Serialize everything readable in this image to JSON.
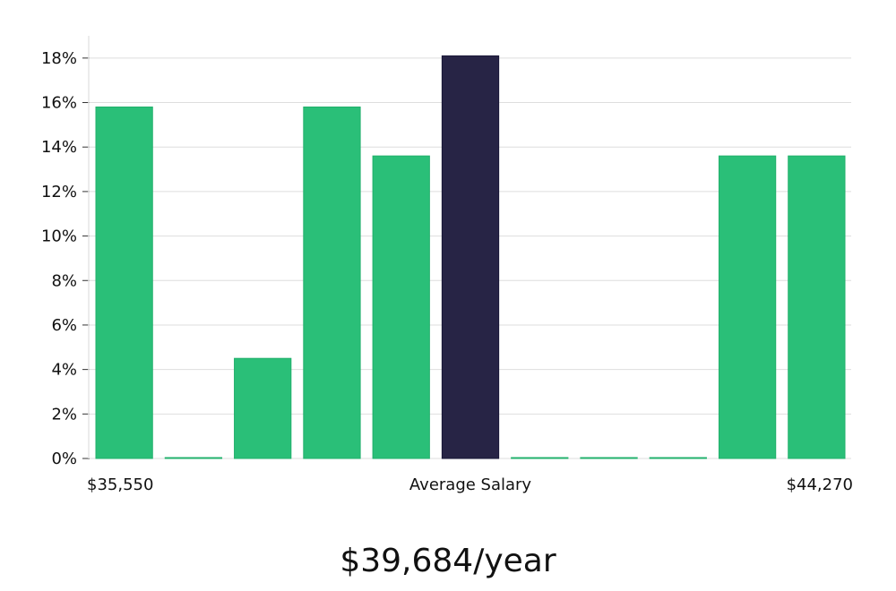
{
  "chart_data": {
    "type": "bar",
    "title": "",
    "xlabel": "Average Salary",
    "ylabel": "",
    "x_range_labels": {
      "min": "$35,550",
      "max": "$44,270"
    },
    "values": [
      15.8,
      0,
      4.5,
      15.8,
      13.6,
      18.1,
      0,
      0,
      0,
      13.6,
      13.6
    ],
    "highlight_index": 5,
    "ylim": [
      0,
      19
    ],
    "yticks": [
      0,
      2,
      4,
      6,
      8,
      10,
      12,
      14,
      16,
      18
    ],
    "ytick_suffix": "%",
    "grid": true,
    "colors": {
      "bar": "#2abf78",
      "highlight": "#272445",
      "gridline": "#dedede"
    }
  },
  "summary": {
    "average_salary": "$39,684/year"
  }
}
